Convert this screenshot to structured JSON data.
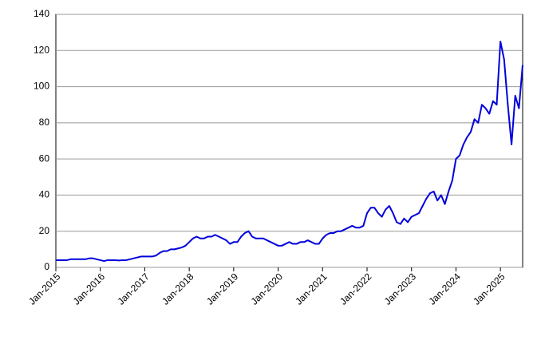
{
  "chart_data": {
    "type": "line",
    "x": [
      "2015-01",
      "2015-02",
      "2015-03",
      "2015-04",
      "2015-05",
      "2015-06",
      "2015-07",
      "2015-08",
      "2015-09",
      "2015-10",
      "2015-11",
      "2015-12",
      "2016-01",
      "2016-02",
      "2016-03",
      "2016-04",
      "2016-05",
      "2016-06",
      "2016-07",
      "2016-08",
      "2016-09",
      "2016-10",
      "2016-11",
      "2016-12",
      "2017-01",
      "2017-02",
      "2017-03",
      "2017-04",
      "2017-05",
      "2017-06",
      "2017-07",
      "2017-08",
      "2017-09",
      "2017-10",
      "2017-11",
      "2017-12",
      "2018-01",
      "2018-02",
      "2018-03",
      "2018-04",
      "2018-05",
      "2018-06",
      "2018-07",
      "2018-08",
      "2018-09",
      "2018-10",
      "2018-11",
      "2018-12",
      "2019-01",
      "2019-02",
      "2019-03",
      "2019-04",
      "2019-05",
      "2019-06",
      "2019-07",
      "2019-08",
      "2019-09",
      "2019-10",
      "2019-11",
      "2019-12",
      "2020-01",
      "2020-02",
      "2020-03",
      "2020-04",
      "2020-05",
      "2020-06",
      "2020-07",
      "2020-08",
      "2020-09",
      "2020-10",
      "2020-11",
      "2020-12",
      "2021-01",
      "2021-02",
      "2021-03",
      "2021-04",
      "2021-05",
      "2021-06",
      "2021-07",
      "2021-08",
      "2021-09",
      "2021-10",
      "2021-11",
      "2021-12",
      "2022-01",
      "2022-02",
      "2022-03",
      "2022-04",
      "2022-05",
      "2022-06",
      "2022-07",
      "2022-08",
      "2022-09",
      "2022-10",
      "2022-11",
      "2022-12",
      "2023-01",
      "2023-02",
      "2023-03",
      "2023-04",
      "2023-05",
      "2023-06",
      "2023-07",
      "2023-08",
      "2023-09",
      "2023-10",
      "2023-11",
      "2023-12",
      "2024-01",
      "2024-02",
      "2024-03",
      "2024-04",
      "2024-05",
      "2024-06",
      "2024-07",
      "2024-08",
      "2024-09",
      "2024-10",
      "2024-11",
      "2024-12",
      "2025-01",
      "2025-02",
      "2025-03",
      "2025-04",
      "2025-05",
      "2025-06",
      "2025-07"
    ],
    "series": [
      {
        "color": "#0000dd",
        "values": [
          4,
          4,
          4,
          4,
          4.5,
          4.5,
          4.5,
          4.5,
          4.5,
          5,
          5,
          4.5,
          4,
          3.5,
          4,
          4,
          4,
          3.8,
          4,
          4,
          4.5,
          5,
          5.5,
          6,
          6,
          6,
          6,
          6.5,
          8,
          9,
          9,
          10,
          10,
          10.5,
          11,
          12,
          14,
          16,
          17,
          16,
          16,
          17,
          17,
          18,
          17,
          16,
          15,
          13,
          14,
          14,
          17,
          19,
          20,
          17,
          16,
          16,
          16,
          15,
          14,
          13,
          12,
          12,
          13,
          14,
          13,
          13,
          14,
          14,
          15,
          14,
          13,
          13,
          16,
          18,
          19,
          19,
          20,
          20,
          21,
          22,
          23,
          22,
          22,
          23,
          30,
          33,
          33,
          30,
          28,
          32,
          34,
          30,
          25,
          24,
          27,
          25,
          28,
          29,
          30,
          34,
          38,
          41,
          42,
          37,
          40,
          35,
          42,
          48,
          60,
          62,
          68,
          72,
          75,
          82,
          80,
          90,
          88,
          85,
          92,
          90,
          125,
          115,
          90,
          68,
          95,
          88,
          112
        ]
      }
    ],
    "xlim": [
      "2015-01",
      "2025-07"
    ],
    "xticks": [
      {
        "value": "2015-01",
        "label": "Jan-2015"
      },
      {
        "value": "2016-01",
        "label": "Jan-2016"
      },
      {
        "value": "2017-01",
        "label": "Jan-2017"
      },
      {
        "value": "2018-01",
        "label": "Jan-2018"
      },
      {
        "value": "2019-01",
        "label": "Jan-2019"
      },
      {
        "value": "2020-01",
        "label": "Jan-2020"
      },
      {
        "value": "2021-01",
        "label": "Jan-2021"
      },
      {
        "value": "2022-01",
        "label": "Jan-2022"
      },
      {
        "value": "2023-01",
        "label": "Jan-2023"
      },
      {
        "value": "2024-01",
        "label": "Jan-2024"
      },
      {
        "value": "2025-01",
        "label": "Jan-2025"
      }
    ],
    "ylim": [
      0,
      140
    ],
    "yticks": [
      0,
      20,
      40,
      60,
      80,
      100,
      120,
      140
    ],
    "grid": true
  }
}
